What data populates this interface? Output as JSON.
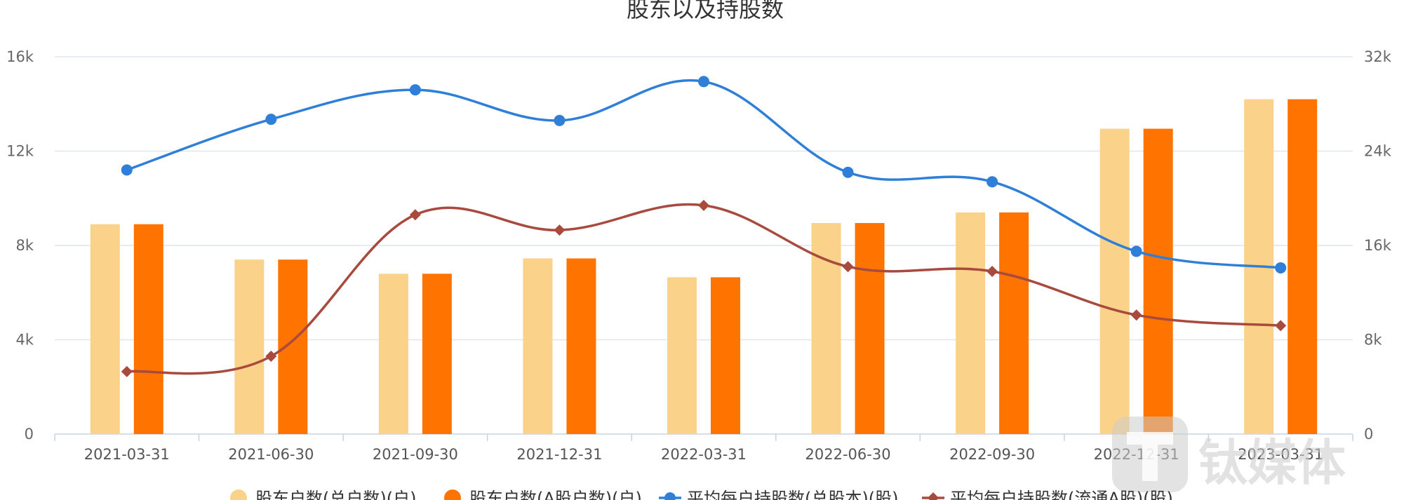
{
  "chart_data": {
    "type": "bar",
    "title": "股东以及持股数",
    "categories": [
      "2021-03-31",
      "2021-06-30",
      "2021-09-30",
      "2021-12-31",
      "2022-03-31",
      "2022-06-30",
      "2022-09-30",
      "2022-12-31",
      "2023-03-31"
    ],
    "y_left": {
      "ticks": [
        "0",
        "4k",
        "8k",
        "12k",
        "16k"
      ],
      "range": [
        0,
        16000
      ]
    },
    "y_right": {
      "ticks": [
        "0",
        "8k",
        "16k",
        "24k",
        "32k"
      ],
      "range": [
        0,
        32000
      ]
    },
    "grid": true,
    "legend_position": "bottom",
    "series": [
      {
        "name": "股东户数(总户数)(户)",
        "type": "bar",
        "axis": "left",
        "color": "#fbd289",
        "values": [
          8900,
          7400,
          6800,
          7450,
          6650,
          8950,
          9400,
          12950,
          14200
        ]
      },
      {
        "name": "股东户数(A股户数)(户)",
        "type": "bar",
        "axis": "left",
        "color": "#ff7300",
        "values": [
          8900,
          7400,
          6800,
          7450,
          6650,
          8950,
          9400,
          12950,
          14200
        ]
      },
      {
        "name": "平均每户持股数(总股本)(股)",
        "type": "line",
        "axis": "right",
        "color": "#2f7fd8",
        "marker": "circle",
        "values": [
          22400,
          26700,
          29200,
          26600,
          29900,
          22200,
          21400,
          15500,
          14100
        ]
      },
      {
        "name": "平均每户持股数(流通A股)(股)",
        "type": "line",
        "axis": "right",
        "color": "#a84a3e",
        "marker": "diamond",
        "values": [
          5300,
          6600,
          18600,
          17300,
          19400,
          14200,
          13800,
          10100,
          9200
        ]
      }
    ]
  },
  "watermark": {
    "text": "钛媒体",
    "icon": "tmtpost-logo-icon"
  }
}
